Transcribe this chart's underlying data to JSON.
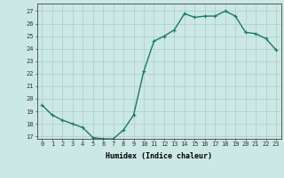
{
  "x": [
    0,
    1,
    2,
    3,
    4,
    5,
    6,
    7,
    8,
    9,
    10,
    11,
    12,
    13,
    14,
    15,
    16,
    17,
    18,
    19,
    20,
    21,
    22,
    23
  ],
  "y": [
    19.5,
    18.7,
    18.3,
    18.0,
    17.7,
    16.9,
    16.8,
    16.8,
    17.5,
    18.7,
    22.2,
    24.6,
    25.0,
    25.5,
    26.8,
    26.5,
    26.6,
    26.6,
    27.0,
    26.6,
    25.3,
    25.2,
    24.8,
    23.9
  ],
  "line_color": "#1a7a5e",
  "marker": "+",
  "marker_size": 3,
  "marker_color": "#1a7a5e",
  "bg_color": "#cce8e4",
  "grid_color": "#aaccc8",
  "xlabel": "Humidex (Indice chaleur)",
  "xlim": [
    -0.5,
    23.5
  ],
  "ylim": [
    16.8,
    27.6
  ],
  "yticks": [
    17,
    18,
    19,
    20,
    21,
    22,
    23,
    24,
    25,
    26,
    27
  ],
  "xticks": [
    0,
    1,
    2,
    3,
    4,
    5,
    6,
    7,
    8,
    9,
    10,
    11,
    12,
    13,
    14,
    15,
    16,
    17,
    18,
    19,
    20,
    21,
    22,
    23
  ],
  "label_fontsize": 6,
  "tick_fontsize": 5,
  "line_width": 1.0
}
